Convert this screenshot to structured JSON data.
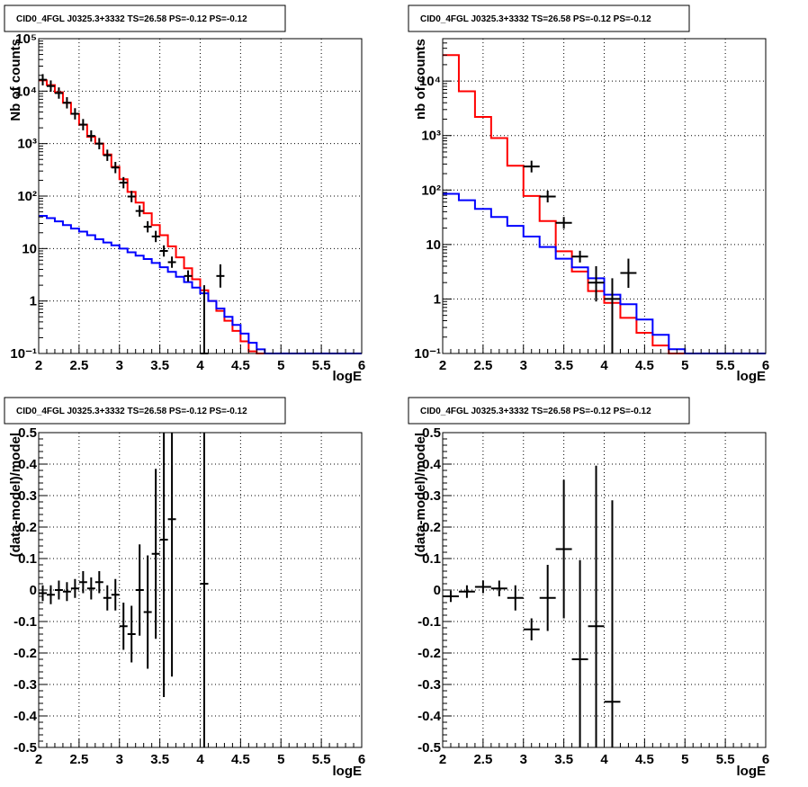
{
  "chart_data": [
    {
      "type": "line",
      "log_y": true,
      "title": "CID0_4FGL J0325.3+3332 TS=26.58 PS=-0.12 PS=-0.12",
      "xlabel": "logE",
      "ylabel": "Nb of counts",
      "xlim": [
        2,
        6
      ],
      "ylim": [
        0.1,
        100000
      ],
      "grid": true,
      "x_ticks": [
        "2",
        "2.5",
        "3",
        "3.5",
        "4",
        "4.5",
        "5",
        "5.5",
        "6"
      ],
      "y_ticks": [
        "10⁻¹",
        "1",
        "10",
        "10²",
        "10³",
        "10⁴",
        "10⁵"
      ],
      "bin_edges": [
        2.0,
        2.1,
        2.2,
        2.3,
        2.4,
        2.5,
        2.6,
        2.7,
        2.8,
        2.9,
        3.0,
        3.1,
        3.2,
        3.3,
        3.4,
        3.5,
        3.6,
        3.7,
        3.8,
        3.9,
        4.0,
        4.1,
        4.2,
        4.3,
        4.4,
        4.5,
        4.6,
        4.7,
        4.8,
        4.9,
        5.0,
        5.1,
        5.2,
        5.3,
        5.4,
        5.5,
        5.6,
        5.7,
        5.8,
        5.9,
        6.0
      ],
      "series": [
        {
          "color": "#ff0000",
          "values": [
            16000,
            13000,
            9500,
            6000,
            3700,
            2300,
            1350,
            1000,
            620,
            360,
            210,
            120,
            75,
            47,
            28,
            18,
            11,
            6.8,
            4.2,
            2.6,
            1.6,
            1.0,
            0.65,
            0.42,
            0.27,
            0.17,
            0.11,
            0.1,
            0.1,
            0.1,
            0.1,
            0.1,
            0.1,
            0.1,
            0.1,
            0.1,
            0.1,
            0.1,
            0.1,
            0.1
          ]
        },
        {
          "color": "#0000ff",
          "values": [
            42,
            38,
            33,
            28,
            24,
            21,
            18,
            15,
            13,
            11.5,
            10,
            8.5,
            7.3,
            6.3,
            5.3,
            4.4,
            3.6,
            2.9,
            2.3,
            1.8,
            1.4,
            1.0,
            0.72,
            0.5,
            0.35,
            0.24,
            0.16,
            0.12,
            0.1,
            0.1,
            0.1,
            0.1,
            0.1,
            0.1,
            0.1,
            0.1,
            0.1,
            0.1,
            0.1,
            0.1
          ]
        }
      ],
      "data_points": [
        {
          "x": 2.05,
          "y": 16500
        },
        {
          "x": 2.15,
          "y": 12500
        },
        {
          "x": 2.25,
          "y": 9200
        },
        {
          "x": 2.35,
          "y": 6000
        },
        {
          "x": 2.45,
          "y": 3700
        },
        {
          "x": 2.55,
          "y": 2300
        },
        {
          "x": 2.65,
          "y": 1400
        },
        {
          "x": 2.75,
          "y": 1000
        },
        {
          "x": 2.85,
          "y": 600
        },
        {
          "x": 2.95,
          "y": 350
        },
        {
          "x": 3.05,
          "y": 180
        },
        {
          "x": 3.15,
          "y": 98
        },
        {
          "x": 3.25,
          "y": 52
        },
        {
          "x": 3.35,
          "y": 26
        },
        {
          "x": 3.45,
          "y": 17
        },
        {
          "x": 3.55,
          "y": 9
        },
        {
          "x": 3.65,
          "y": 5.5
        },
        {
          "x": 3.85,
          "y": 3
        },
        {
          "x": 4.05,
          "y": 0.1,
          "ylo": 0.1,
          "yhi": 2
        },
        {
          "x": 4.25,
          "y": 3,
          "ylo": 1.8,
          "yhi": 5
        }
      ]
    },
    {
      "type": "line",
      "log_y": true,
      "title": "CID0_4FGL J0325.3+3332 TS=26.58 PS=-0.12 PS=-0.12",
      "xlabel": "logE",
      "ylabel": "nb of counts",
      "xlim": [
        2,
        6
      ],
      "ylim": [
        0.1,
        60000
      ],
      "grid": true,
      "x_ticks": [
        "2",
        "2.5",
        "3",
        "3.5",
        "4",
        "4.5",
        "5",
        "5.5",
        "6"
      ],
      "y_ticks": [
        "10⁻¹",
        "1",
        "10",
        "10²",
        "10³",
        "10⁴"
      ],
      "bin_edges": [
        2.0,
        2.2,
        2.4,
        2.6,
        2.8,
        3.0,
        3.2,
        3.4,
        3.6,
        3.8,
        4.0,
        4.2,
        4.4,
        4.6,
        4.8,
        5.0,
        5.2,
        5.4,
        5.6,
        5.8,
        6.0
      ],
      "series": [
        {
          "color": "#ff0000",
          "values": [
            30000,
            6500,
            2200,
            900,
            280,
            78,
            27,
            7.5,
            3.2,
            1.4,
            0.85,
            0.45,
            0.24,
            0.14,
            0.1,
            0.1,
            0.1,
            0.1,
            0.1,
            0.1
          ]
        },
        {
          "color": "#0000ff",
          "values": [
            85,
            65,
            45,
            32,
            22,
            14,
            9,
            5.5,
            3.8,
            2.4,
            1.2,
            0.8,
            0.42,
            0.22,
            0.12,
            0.1,
            0.1,
            0.1,
            0.1,
            0.1
          ]
        }
      ],
      "data_points": [
        {
          "x": 3.1,
          "y": 270
        },
        {
          "x": 3.3,
          "y": 76
        },
        {
          "x": 3.5,
          "y": 25
        },
        {
          "x": 3.7,
          "y": 6
        },
        {
          "x": 3.9,
          "y": 2,
          "ylo": 0.9,
          "yhi": 4
        },
        {
          "x": 4.1,
          "y": 1,
          "ylo": 0.1,
          "yhi": 2.4
        },
        {
          "x": 4.3,
          "y": 3,
          "ylo": 1.6,
          "yhi": 5.5
        }
      ]
    },
    {
      "type": "scatter",
      "title": "CID0_4FGL J0325.3+3332 TS=26.58 PS=-0.12 PS=-0.12",
      "xlabel": "logE",
      "ylabel": "(data-model)/model",
      "xlim": [
        2,
        6
      ],
      "ylim": [
        -0.5,
        0.5
      ],
      "grid": true,
      "x_ticks": [
        "2",
        "2.5",
        "3",
        "3.5",
        "4",
        "4.5",
        "5",
        "5.5",
        "6"
      ],
      "y_ticks": [
        "-0.5",
        "-0.4",
        "-0.3",
        "-0.2",
        "-0.1",
        "0",
        "0.1",
        "0.2",
        "0.3",
        "0.4",
        "0.5"
      ],
      "y_tick_values": [
        -0.5,
        -0.4,
        -0.3,
        -0.2,
        -0.1,
        0,
        0.1,
        0.2,
        0.3,
        0.4,
        0.5
      ],
      "points": [
        {
          "x": 2.05,
          "y": -0.01,
          "err": 0.025
        },
        {
          "x": 2.15,
          "y": -0.015,
          "err": 0.03
        },
        {
          "x": 2.25,
          "y": 0.0,
          "err": 0.03
        },
        {
          "x": 2.35,
          "y": -0.005,
          "err": 0.03
        },
        {
          "x": 2.45,
          "y": 0.005,
          "err": 0.03
        },
        {
          "x": 2.55,
          "y": 0.025,
          "err": 0.035
        },
        {
          "x": 2.65,
          "y": 0.005,
          "err": 0.035
        },
        {
          "x": 2.75,
          "y": 0.025,
          "err": 0.035
        },
        {
          "x": 2.85,
          "y": -0.025,
          "err": 0.04
        },
        {
          "x": 2.95,
          "y": -0.015,
          "err": 0.05
        },
        {
          "x": 3.05,
          "y": -0.115,
          "err": 0.075
        },
        {
          "x": 3.15,
          "y": -0.14,
          "err": 0.09
        },
        {
          "x": 3.25,
          "y": 0.0,
          "err": 0.145
        },
        {
          "x": 3.35,
          "y": -0.07,
          "err": 0.18
        },
        {
          "x": 3.45,
          "y": 0.115,
          "err": 0.27
        },
        {
          "x": 3.55,
          "y": 0.16,
          "err": 0.5
        },
        {
          "x": 3.65,
          "y": 0.225,
          "err": 0.5
        },
        {
          "x": 4.05,
          "y": 0.02,
          "err": 0.6
        }
      ]
    },
    {
      "type": "scatter",
      "title": "CID0_4FGL J0325.3+3332 TS=26.58 PS=-0.12 PS=-0.12",
      "xlabel": "logE",
      "ylabel": "(data-model)/model",
      "xlim": [
        2,
        6
      ],
      "ylim": [
        -0.5,
        0.5
      ],
      "grid": true,
      "x_ticks": [
        "2",
        "2.5",
        "3",
        "3.5",
        "4",
        "4.5",
        "5",
        "5.5",
        "6"
      ],
      "y_ticks": [
        "-0.5",
        "-0.4",
        "-0.3",
        "-0.2",
        "-0.1",
        "0",
        "0.1",
        "0.2",
        "0.3",
        "0.4",
        "0.5"
      ],
      "y_tick_values": [
        -0.5,
        -0.4,
        -0.3,
        -0.2,
        -0.1,
        0,
        0.1,
        0.2,
        0.3,
        0.4,
        0.5
      ],
      "points": [
        {
          "x": 2.1,
          "y": -0.02,
          "err": 0.018
        },
        {
          "x": 2.3,
          "y": -0.005,
          "err": 0.02
        },
        {
          "x": 2.5,
          "y": 0.01,
          "err": 0.02
        },
        {
          "x": 2.7,
          "y": 0.005,
          "err": 0.025
        },
        {
          "x": 2.9,
          "y": -0.025,
          "err": 0.04
        },
        {
          "x": 3.1,
          "y": -0.125,
          "err": 0.035
        },
        {
          "x": 3.3,
          "y": -0.025,
          "err": 0.105
        },
        {
          "x": 3.5,
          "y": 0.13,
          "err": 0.22
        },
        {
          "x": 3.7,
          "y": -0.22,
          "err": 0.315
        },
        {
          "x": 3.9,
          "y": -0.115,
          "err": 0.51
        },
        {
          "x": 4.1,
          "y": -0.355,
          "err": 0.64
        }
      ]
    }
  ]
}
